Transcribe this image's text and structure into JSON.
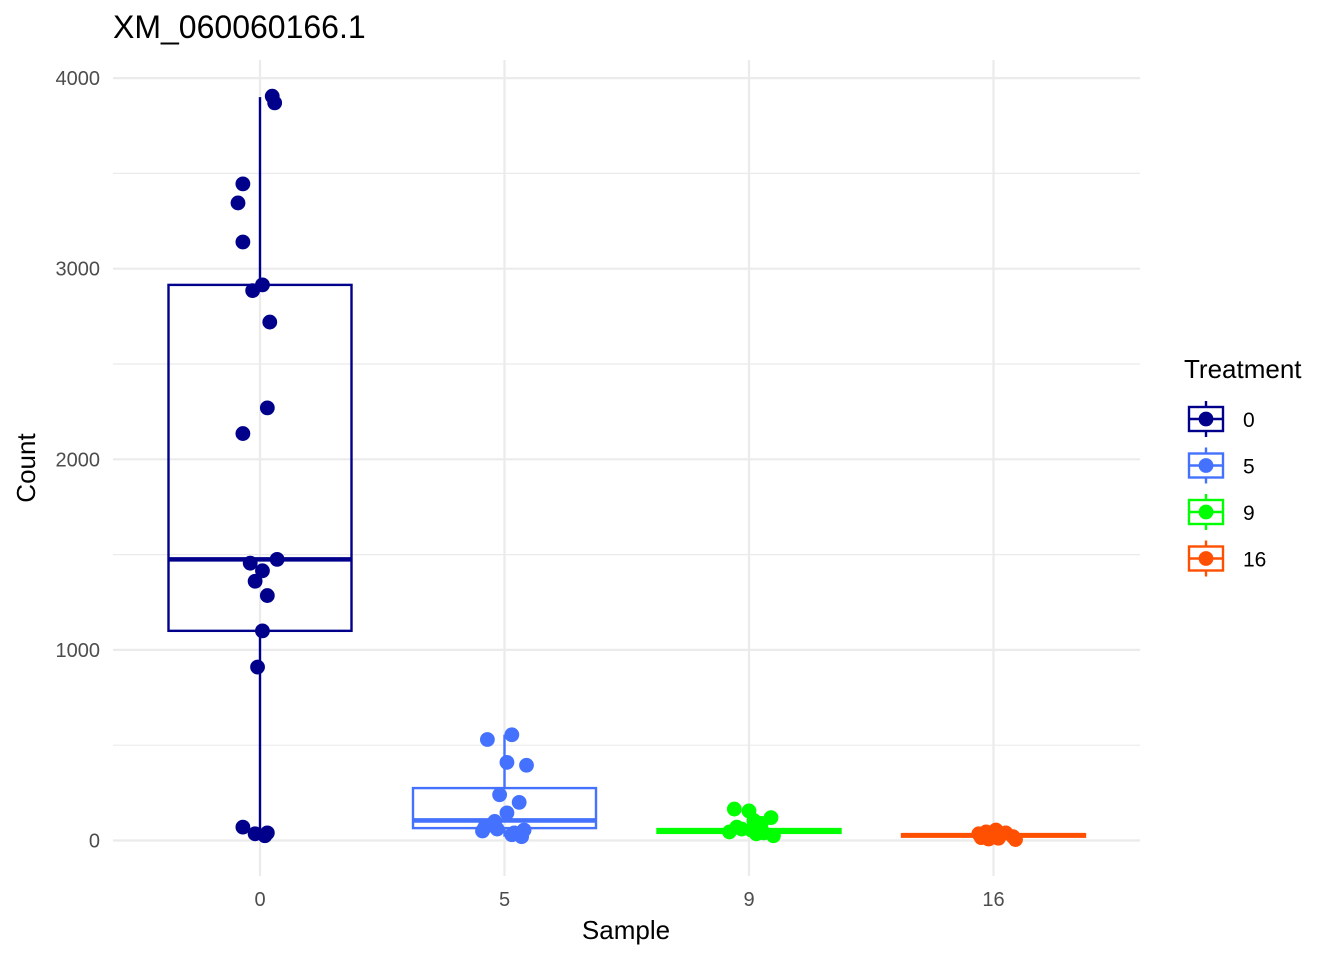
{
  "chart_data": {
    "type": "box",
    "title": "XM_060060166.1",
    "xlabel": "Sample",
    "ylabel": "Count",
    "ylim": [
      -100,
      4150
    ],
    "y_ticks": [
      0,
      1000,
      2000,
      3000,
      4000
    ],
    "categories": [
      "0",
      "5",
      "9",
      "16"
    ],
    "grid": true,
    "legend": {
      "title": "Treatment",
      "position": "right",
      "entries": [
        "0",
        "5",
        "9",
        "16"
      ]
    },
    "series": [
      {
        "name": "0",
        "color": "#00008B",
        "box": {
          "q1": 1100,
          "median": 1475,
          "q3": 2915,
          "whisker_low": 30,
          "whisker_high": 3900
        },
        "points": [
          {
            "dx": 0.05,
            "y": 3905
          },
          {
            "dx": 0.06,
            "y": 3870
          },
          {
            "dx": -0.07,
            "y": 3445
          },
          {
            "dx": -0.09,
            "y": 3345
          },
          {
            "dx": -0.07,
            "y": 3140
          },
          {
            "dx": 0.01,
            "y": 2915
          },
          {
            "dx": -0.03,
            "y": 2885
          },
          {
            "dx": 0.04,
            "y": 2720
          },
          {
            "dx": 0.03,
            "y": 2270
          },
          {
            "dx": -0.07,
            "y": 2135
          },
          {
            "dx": 0.07,
            "y": 1475
          },
          {
            "dx": -0.04,
            "y": 1455
          },
          {
            "dx": 0.01,
            "y": 1415
          },
          {
            "dx": -0.02,
            "y": 1360
          },
          {
            "dx": 0.03,
            "y": 1285
          },
          {
            "dx": 0.01,
            "y": 1100
          },
          {
            "dx": -0.01,
            "y": 910
          },
          {
            "dx": -0.07,
            "y": 70
          },
          {
            "dx": -0.02,
            "y": 35
          },
          {
            "dx": 0.03,
            "y": 40
          },
          {
            "dx": 0.02,
            "y": 25
          }
        ]
      },
      {
        "name": "5",
        "color": "#4472FF",
        "box": {
          "q1": 65,
          "median": 105,
          "q3": 275,
          "whisker_low": 20,
          "whisker_high": 555
        },
        "points": [
          {
            "dx": 0.03,
            "y": 555
          },
          {
            "dx": -0.07,
            "y": 530
          },
          {
            "dx": 0.01,
            "y": 410
          },
          {
            "dx": 0.09,
            "y": 395
          },
          {
            "dx": -0.02,
            "y": 240
          },
          {
            "dx": 0.06,
            "y": 200
          },
          {
            "dx": 0.01,
            "y": 145
          },
          {
            "dx": -0.04,
            "y": 100
          },
          {
            "dx": -0.08,
            "y": 70
          },
          {
            "dx": -0.03,
            "y": 60
          },
          {
            "dx": 0.08,
            "y": 55
          },
          {
            "dx": -0.09,
            "y": 50
          },
          {
            "dx": 0.04,
            "y": 40
          },
          {
            "dx": 0.03,
            "y": 30
          },
          {
            "dx": 0.07,
            "y": 20
          }
        ]
      },
      {
        "name": "9",
        "color": "#00FF00",
        "box": {
          "q1": 40,
          "median": 50,
          "q3": 60,
          "whisker_low": 20,
          "whisker_high": 165
        },
        "points": [
          {
            "dx": -0.06,
            "y": 165
          },
          {
            "dx": 0.0,
            "y": 155
          },
          {
            "dx": 0.09,
            "y": 120
          },
          {
            "dx": 0.02,
            "y": 105
          },
          {
            "dx": 0.05,
            "y": 90
          },
          {
            "dx": -0.05,
            "y": 70
          },
          {
            "dx": -0.03,
            "y": 60
          },
          {
            "dx": 0.01,
            "y": 55
          },
          {
            "dx": -0.08,
            "y": 45
          },
          {
            "dx": 0.06,
            "y": 40
          },
          {
            "dx": 0.03,
            "y": 35
          },
          {
            "dx": 0.1,
            "y": 25
          }
        ]
      },
      {
        "name": "16",
        "color": "#FF4F00",
        "box": {
          "q1": 20,
          "median": 28,
          "q3": 33,
          "whisker_low": 5,
          "whisker_high": 55
        },
        "points": [
          {
            "dx": 0.01,
            "y": 55
          },
          {
            "dx": -0.03,
            "y": 45
          },
          {
            "dx": 0.05,
            "y": 40
          },
          {
            "dx": -0.06,
            "y": 35
          },
          {
            "dx": 0.03,
            "y": 30
          },
          {
            "dx": -0.01,
            "y": 25
          },
          {
            "dx": 0.08,
            "y": 20
          },
          {
            "dx": -0.05,
            "y": 15
          },
          {
            "dx": 0.02,
            "y": 12
          },
          {
            "dx": -0.02,
            "y": 8
          },
          {
            "dx": 0.09,
            "y": 5
          }
        ]
      }
    ]
  }
}
